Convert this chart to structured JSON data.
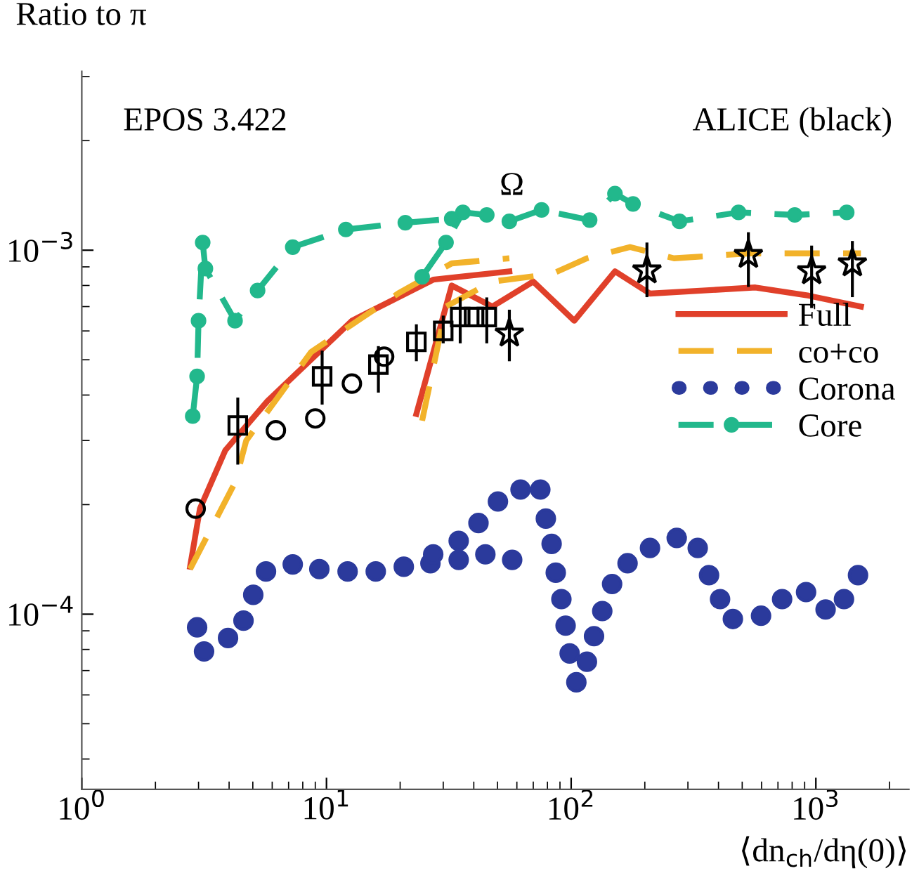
{
  "chart_data": {
    "type": "line",
    "ylabel": "Ratio to π",
    "xlabel": "⟨dn$_{ch}$/dη(0)⟩",
    "annotations": [
      "EPOS 3.422",
      "ALICE (black)",
      "Ω"
    ],
    "log": "xy",
    "xlim": [
      1,
      2400
    ],
    "ylim": [
      3.3e-05,
      0.0031
    ],
    "xticks": [
      {
        "value": 1,
        "label": "10$^{0}$"
      },
      {
        "value": 10,
        "label": "10$^{1}$"
      },
      {
        "value": 100,
        "label": "10$^{2}$"
      },
      {
        "value": 1000,
        "label": "10$^{3}$"
      }
    ],
    "yticks": [
      {
        "value": 0.0001,
        "label": "10$^{−4}$"
      },
      {
        "value": 0.001,
        "label": "10$^{−3}$"
      }
    ],
    "grid": false,
    "legend": "right",
    "series": [
      {
        "name": "Full",
        "color": "#e0402a",
        "line_style": "solid",
        "marker": "none",
        "x": [
          2.77,
          3.04,
          3.86,
          5.74,
          12.7,
          27.3,
          55.9,
          null,
          23.3,
          32.5,
          47.6,
          70.0,
          103,
          151,
          210,
          347,
          566,
          935,
          1528
        ],
        "values": [
          0.000135,
          0.000195,
          0.000282,
          0.000385,
          0.00064,
          0.00083,
          0.000875,
          null,
          0.000355,
          0.0008,
          0.0007,
          0.00082,
          0.00064,
          0.000875,
          0.00076,
          0.000775,
          0.00079,
          0.00075,
          0.0007
        ]
      },
      {
        "name": "co+co",
        "color": "#f2b22a",
        "line_style": "dashed",
        "marker": "none",
        "x": [
          2.77,
          4.23,
          4.7,
          8.65,
          19.6,
          32.5,
          55.9,
          null,
          24.6,
          30.8,
          47.6,
          83.2,
          116,
          174,
          263,
          537,
          935,
          1528
        ],
        "values": [
          0.000133,
          0.00023,
          0.0003,
          0.000525,
          0.00076,
          0.00092,
          0.00095,
          null,
          0.00034,
          0.0007,
          0.00082,
          0.00086,
          0.00095,
          0.00102,
          0.00095,
          0.00098,
          0.00098,
          0.00098
        ]
      },
      {
        "name": "Corona",
        "type": "scatter",
        "color": "#2b3a9c",
        "marker": "circle",
        "x": [
          2.96,
          3.16,
          3.96,
          4.58,
          5.02,
          5.66,
          7.28,
          9.35,
          12.2,
          15.9,
          20.7,
          26.6,
          34.7,
          44.6,
          57.4
        ],
        "values": [
          9.2e-05,
          7.9e-05,
          8.6e-05,
          9.6e-05,
          0.000113,
          0.000131,
          0.000137,
          0.000133,
          0.000131,
          0.000131,
          0.000135,
          0.000138,
          0.000141,
          0.000146,
          0.000141
        ]
      },
      {
        "type": "scatter",
        "color": "#2b3a9c",
        "marker": "circle",
        "x": [
          27.3,
          34.7,
          41.8,
          50.2,
          62.1,
          74.8,
          78.8,
          83.2,
          86.5,
          91.2,
          94.9,
          98.6,
          105,
          116,
          124,
          134,
          147,
          170,
          210,
          270,
          329,
          366,
          406,
          458,
          597,
          728,
          912,
          1096,
          1303,
          1487
        ],
        "values": [
          0.000146,
          0.000159,
          0.000178,
          0.000204,
          0.00022,
          0.00022,
          0.000183,
          0.000156,
          0.00013,
          0.00011,
          9.3e-05,
          7.8e-05,
          6.5e-05,
          7.4e-05,
          8.7e-05,
          0.000102,
          0.000121,
          0.000138,
          0.000152,
          0.000162,
          0.000152,
          0.000128,
          0.00011,
          9.7e-05,
          9.9e-05,
          0.00011,
          0.000115,
          0.000103,
          0.00011,
          0.000128
        ]
      },
      {
        "name": "Core",
        "color": "#22b88c",
        "line_style": "dashed",
        "marker": "circle",
        "x": [
          2.84,
          2.96,
          3.0,
          3.12,
          3.2,
          4.23,
          5.23,
          7.28,
          12.0,
          21.0,
          32.5,
          null,
          24.6,
          30.8,
          36.1,
          45.2,
          55.9,
          75.7,
          119,
          151,
          179,
          277,
          483,
          820,
          1337
        ],
        "values": [
          0.00035,
          0.00045,
          0.00064,
          0.00105,
          0.00089,
          0.00064,
          0.000775,
          0.00102,
          0.00114,
          0.00119,
          0.00122,
          null,
          0.000845,
          0.00105,
          0.00127,
          0.00125,
          0.0012,
          0.00129,
          0.00121,
          0.00143,
          0.00134,
          0.0012,
          0.00127,
          0.00125,
          0.00127
        ]
      },
      {
        "type": "scatter",
        "color": "#000000",
        "marker": "square",
        "x": [
          4.34,
          9.6,
          16.3,
          23.3,
          30.0,
          35.2,
          40.1,
          45.2
        ],
        "values": [
          0.00033,
          0.00045,
          0.000485,
          0.00056,
          0.0006,
          0.000655,
          0.000655,
          0.000655
        ],
        "errors": [
          [
            0.00026,
            0.00039
          ],
          [
            0.00038,
            0.000525
          ],
          [
            0.00041,
            0.00054
          ],
          [
            0.0005,
            0.00062
          ],
          [
            0.00056,
            0.000655
          ],
          [
            0.00056,
            0.000735
          ],
          null,
          [
            0.00056,
            0.000735
          ]
        ]
      },
      {
        "type": "scatter",
        "color": "#000000",
        "marker": "circle",
        "x": [
          2.92,
          6.21,
          9.0,
          12.7,
          17.2
        ],
        "values": [
          0.000195,
          0.00032,
          0.000345,
          0.00043,
          0.00051
        ]
      },
      {
        "type": "scatter",
        "color": "#000000",
        "marker": "star",
        "x": [
          55.9,
          204,
          530,
          961,
          1410
        ],
        "values": [
          0.00059,
          0.00088,
          0.00097,
          0.000875,
          0.00092
        ],
        "errors": [
          [
            0.0005,
            0.00068
          ],
          [
            0.00075,
            0.00104
          ],
          [
            0.0008,
            0.00111
          ],
          [
            0.0007,
            0.00102
          ],
          [
            0.00075,
            0.00105
          ]
        ]
      }
    ]
  }
}
